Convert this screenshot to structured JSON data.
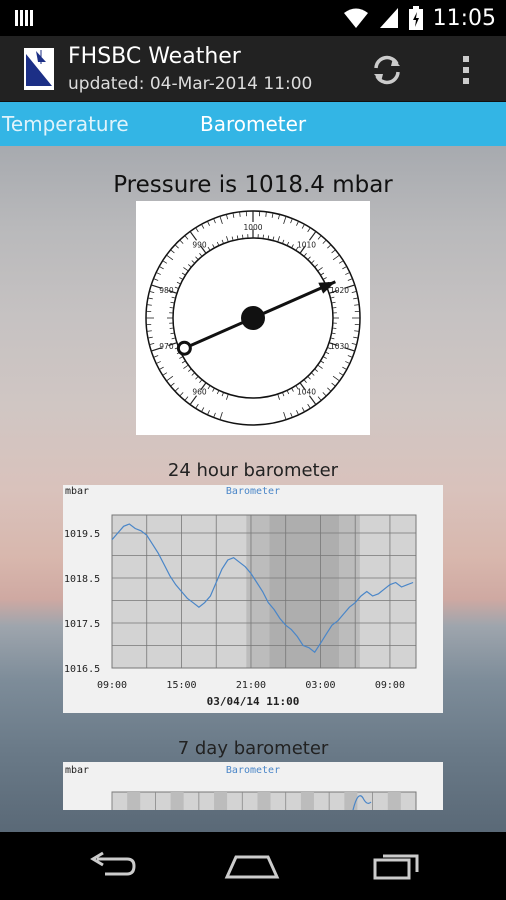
{
  "status_bar": {
    "time": "11:05"
  },
  "action_bar": {
    "title": "FHSBC Weather",
    "subtitle": "updated: 04-Mar-2014 11:00"
  },
  "tabs": [
    {
      "label": "Temperature",
      "selected": false
    },
    {
      "label": "Barometer",
      "selected": true
    }
  ],
  "main": {
    "pressure_text": "Pressure is 1018.4 mbar",
    "gauge": {
      "value": 1018.4,
      "unit": "mbar",
      "scale_labels": [
        "960",
        "970",
        "980",
        "990",
        "1000",
        "1010",
        "1020",
        "1030",
        "1040"
      ]
    },
    "caption_24h": "24 hour barometer",
    "caption_7d": "7 day barometer"
  },
  "chart_data": [
    {
      "type": "line",
      "title": "Barometer",
      "ylabel": "mbar",
      "x_ticks": [
        "09:00",
        "15:00",
        "21:00",
        "03:00",
        "09:00"
      ],
      "x_footer": "03/04/14 11:00",
      "y_ticks": [
        1019.5,
        1018.5,
        1017.5,
        1016.5
      ],
      "ylim": [
        1016.5,
        1019.9
      ],
      "grid": true,
      "series": [
        {
          "color": "#4a86c8",
          "x_hours": [
            0,
            0.5,
            1,
            1.5,
            2,
            2.5,
            3,
            3.5,
            4,
            4.5,
            5,
            5.5,
            6,
            6.5,
            7,
            7.5,
            8,
            8.5,
            9,
            9.5,
            10,
            10.5,
            11,
            11.5,
            12,
            12.5,
            13,
            13.5,
            14,
            14.5,
            15,
            15.5,
            16,
            16.5,
            17,
            17.5,
            18,
            18.5,
            19,
            19.5,
            20,
            20.5,
            21,
            21.5,
            22,
            22.5,
            23,
            23.5,
            24,
            24.5,
            25,
            25.5,
            26
          ],
          "values": [
            1019.35,
            1019.5,
            1019.65,
            1019.7,
            1019.6,
            1019.55,
            1019.45,
            1019.25,
            1019.05,
            1018.8,
            1018.55,
            1018.35,
            1018.2,
            1018.05,
            1017.95,
            1017.85,
            1017.95,
            1018.1,
            1018.4,
            1018.7,
            1018.9,
            1018.95,
            1018.85,
            1018.75,
            1018.6,
            1018.4,
            1018.2,
            1017.95,
            1017.8,
            1017.6,
            1017.45,
            1017.35,
            1017.2,
            1017.0,
            1016.95,
            1016.85,
            1017.05,
            1017.25,
            1017.45,
            1017.55,
            1017.7,
            1017.85,
            1017.95,
            1018.1,
            1018.2,
            1018.1,
            1018.15,
            1018.25,
            1018.35,
            1018.4,
            1018.3,
            1018.35,
            1018.4
          ]
        }
      ]
    },
    {
      "type": "line",
      "title": "Barometer",
      "ylabel": "mbar",
      "grid": true,
      "series": [
        {
          "color": "#4a86c8",
          "values": []
        }
      ]
    }
  ]
}
